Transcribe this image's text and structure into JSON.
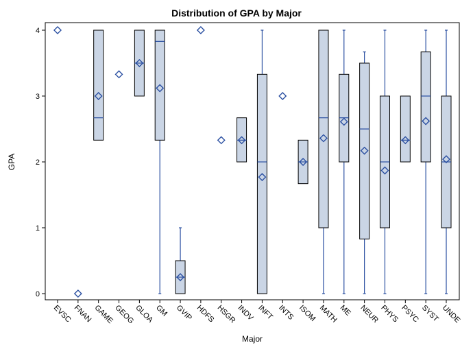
{
  "chart_data": {
    "type": "boxplot",
    "title": "Distribution of GPA by Major",
    "xlabel": "Major",
    "ylabel": "GPA",
    "ylim": [
      0,
      4
    ],
    "yticks": [
      0,
      1,
      2,
      3,
      4
    ],
    "grid": false,
    "legend": "none",
    "categories": [
      "EVSC",
      "FNAN",
      "GAME",
      "GEOG",
      "GLOA",
      "GM",
      "GVIP",
      "HDFS",
      "HSGR",
      "INDV",
      "INFT",
      "INTS",
      "ISOM",
      "MATH",
      "ME",
      "NEUR",
      "PHYS",
      "PSYC",
      "SYST",
      "UNDE"
    ],
    "boxes": [
      {
        "category": "EVSC",
        "min": 4,
        "q1": 4,
        "median": 4,
        "q3": 4,
        "max": 4,
        "mean": 4
      },
      {
        "category": "FNAN",
        "min": 0,
        "q1": 0,
        "median": 0,
        "q3": 0,
        "max": 0,
        "mean": 0
      },
      {
        "category": "GAME",
        "min": 2.33,
        "q1": 2.33,
        "median": 2.67,
        "q3": 4,
        "max": 4,
        "mean": 3
      },
      {
        "category": "GEOG",
        "min": 3.33,
        "q1": 3.33,
        "median": 3.33,
        "q3": 3.33,
        "max": 3.33,
        "mean": 3.33
      },
      {
        "category": "GLOA",
        "min": 3,
        "q1": 3,
        "median": 3.5,
        "q3": 4,
        "max": 4,
        "mean": 3.5
      },
      {
        "category": "GM",
        "min": 0,
        "q1": 2.33,
        "median": 3.83,
        "q3": 4,
        "max": 4,
        "mean": 3.12
      },
      {
        "category": "GVIP",
        "min": 0,
        "q1": 0,
        "median": 0.25,
        "q3": 0.5,
        "max": 1,
        "mean": 0.25
      },
      {
        "category": "HDFS",
        "min": 4,
        "q1": 4,
        "median": 4,
        "q3": 4,
        "max": 4,
        "mean": 4
      },
      {
        "category": "HSGR",
        "min": 2.33,
        "q1": 2.33,
        "median": 2.33,
        "q3": 2.33,
        "max": 2.33,
        "mean": 2.33
      },
      {
        "category": "INDV",
        "min": 2,
        "q1": 2,
        "median": 2.33,
        "q3": 2.67,
        "max": 2.67,
        "mean": 2.33
      },
      {
        "category": "INFT",
        "min": 0,
        "q1": 0,
        "median": 2,
        "q3": 3.33,
        "max": 4,
        "mean": 1.77
      },
      {
        "category": "INTS",
        "min": 3,
        "q1": 3,
        "median": 3,
        "q3": 3,
        "max": 3,
        "mean": 3
      },
      {
        "category": "ISOM",
        "min": 1.67,
        "q1": 1.67,
        "median": 2,
        "q3": 2.33,
        "max": 2.33,
        "mean": 2
      },
      {
        "category": "MATH",
        "min": 0,
        "q1": 1,
        "median": 2.67,
        "q3": 4,
        "max": 4,
        "mean": 2.36
      },
      {
        "category": "ME",
        "min": 0,
        "q1": 2,
        "median": 2.67,
        "q3": 3.33,
        "max": 4,
        "mean": 2.61
      },
      {
        "category": "NEUR",
        "min": 0,
        "q1": 0.83,
        "median": 2.5,
        "q3": 3.5,
        "max": 3.67,
        "mean": 2.17
      },
      {
        "category": "PHYS",
        "min": 0,
        "q1": 1,
        "median": 2,
        "q3": 3,
        "max": 4,
        "mean": 1.87
      },
      {
        "category": "PSYC",
        "min": 2,
        "q1": 2,
        "median": 2.33,
        "q3": 3,
        "max": 3,
        "mean": 2.33
      },
      {
        "category": "SYST",
        "min": 0,
        "q1": 2,
        "median": 3,
        "q3": 3.67,
        "max": 4,
        "mean": 2.62
      },
      {
        "category": "UNDE",
        "min": 0,
        "q1": 1,
        "median": 2,
        "q3": 3,
        "max": 4,
        "mean": 2.04
      }
    ],
    "colors": {
      "box_fill": "#CAD5E5",
      "box_stroke": "#000000",
      "whisker": "#2A4FA1",
      "mean_marker": "#2A4FA1",
      "axis": "#000000"
    }
  }
}
